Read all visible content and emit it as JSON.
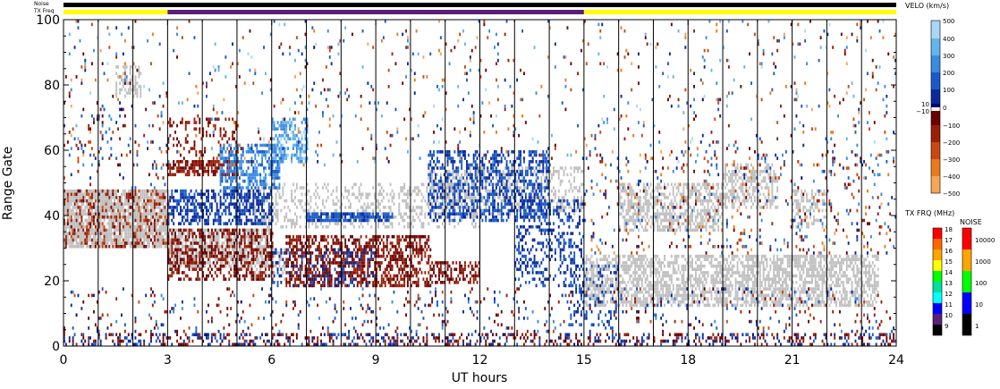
{
  "status_bars": {
    "noise_label": "Noise",
    "txfreq_label": "TX Freq",
    "colors": {
      "noise": "#000000",
      "txfreq_default": "#ffff00",
      "txfreq_mid": "#5a1e78"
    },
    "txfreq_mid_range_hours": [
      3,
      15
    ]
  },
  "chart_data": {
    "type": "heatmap",
    "title": "",
    "xlabel": "UT hours",
    "ylabel": "Range Gate",
    "xlim": [
      0,
      24
    ],
    "ylim": [
      0,
      100
    ],
    "x_ticks": [
      "0",
      "3",
      "6",
      "9",
      "12",
      "15",
      "18",
      "21",
      "24"
    ],
    "y_ticks": [
      "0",
      "20",
      "40",
      "60",
      "80",
      "100"
    ],
    "scan_boundaries_hours": [
      1,
      2,
      3,
      4,
      5,
      6,
      7,
      8,
      9,
      10,
      11,
      12,
      13,
      14,
      15,
      16,
      17,
      18,
      19,
      20,
      21,
      22,
      23
    ],
    "velocity_scale": {
      "title": "VELO (km/s)",
      "ticks": [
        "500",
        "400",
        "300",
        "200",
        "100",
        "10",
        "0",
        "−10",
        "−100",
        "−200",
        "−300",
        "−400",
        "−500"
      ],
      "colors": [
        "#e0f4ff",
        "#a8d8f8",
        "#64b4ee",
        "#3a8ae0",
        "#1a5ac8",
        "#0a2a9a",
        "#000070",
        "#ffffff",
        "#6a0000",
        "#9a1e08",
        "#c84810",
        "#ea7a1e",
        "#f6a456",
        "#fad0a4"
      ]
    },
    "txfreq_scale": {
      "title": "TX FRQ (MHz)",
      "ticks": [
        "18",
        "17",
        "16",
        "15",
        "14",
        "13",
        "12",
        "11",
        "10",
        "9"
      ],
      "colors": [
        "#ff0000",
        "#ff6600",
        "#ffa500",
        "#ffff00",
        "#00ff00",
        "#00e0a0",
        "#00ffff",
        "#0000ff",
        "#5a1e78",
        "#000000"
      ]
    },
    "noise_scale": {
      "title": "NOISE",
      "ticks": [
        "10000",
        "1000",
        "100",
        "10",
        "1"
      ],
      "colors": [
        "#ff0000",
        "#ffa500",
        "#00ff00",
        "#0000ff",
        "#000000"
      ]
    },
    "ground_scatter_color": "#c0c0c0",
    "regions": [
      {
        "kind": "ground",
        "x": [
          0,
          3
        ],
        "y": [
          30,
          48
        ],
        "density": 0.85
      },
      {
        "kind": "ground",
        "x": [
          3,
          6
        ],
        "y": [
          24,
          36
        ],
        "density": 0.7
      },
      {
        "kind": "ground",
        "x": [
          5.5,
          12
        ],
        "y": [
          36,
          50
        ],
        "density": 0.3
      },
      {
        "kind": "ground",
        "x": [
          10.5,
          15
        ],
        "y": [
          40,
          55
        ],
        "density": 0.35
      },
      {
        "kind": "ground",
        "x": [
          15,
          23.5
        ],
        "y": [
          12,
          28
        ],
        "density": 0.6
      },
      {
        "kind": "ground",
        "x": [
          16,
          19
        ],
        "y": [
          35,
          50
        ],
        "density": 0.55
      },
      {
        "kind": "ground",
        "x": [
          19,
          20.6
        ],
        "y": [
          42,
          56
        ],
        "density": 0.5
      },
      {
        "kind": "ground",
        "x": [
          21,
          22
        ],
        "y": [
          36,
          48
        ],
        "density": 0.4
      },
      {
        "kind": "ground",
        "x": [
          1.5,
          2.2
        ],
        "y": [
          76,
          86
        ],
        "density": 0.5
      },
      {
        "kind": "ground",
        "x": [
          5.5,
          6.5
        ],
        "y": [
          20,
          30
        ],
        "density": 0.3
      },
      {
        "kind": "v",
        "x": [
          0,
          3
        ],
        "y": [
          30,
          48
        ],
        "vmin": -250,
        "vmax": -80,
        "density": 0.25
      },
      {
        "kind": "v",
        "x": [
          3,
          6
        ],
        "y": [
          20,
          36
        ],
        "vmin": -150,
        "vmax": -40,
        "density": 0.45
      },
      {
        "kind": "v",
        "x": [
          3,
          5
        ],
        "y": [
          52,
          57
        ],
        "vmin": -200,
        "vmax": -60,
        "density": 0.7
      },
      {
        "kind": "v",
        "x": [
          3,
          5
        ],
        "y": [
          58,
          70
        ],
        "vmin": -200,
        "vmax": -60,
        "density": 0.2
      },
      {
        "kind": "v",
        "x": [
          3,
          6
        ],
        "y": [
          37,
          48
        ],
        "vmin": 20,
        "vmax": 140,
        "density": 0.55
      },
      {
        "kind": "v",
        "x": [
          4.5,
          6.2
        ],
        "y": [
          48,
          62
        ],
        "vmin": 150,
        "vmax": 320,
        "density": 0.55
      },
      {
        "kind": "v",
        "x": [
          6,
          7
        ],
        "y": [
          56,
          70
        ],
        "vmin": 200,
        "vmax": 420,
        "density": 0.5
      },
      {
        "kind": "v",
        "x": [
          7,
          9.5
        ],
        "y": [
          38,
          41
        ],
        "vmin": 60,
        "vmax": 200,
        "density": 0.8
      },
      {
        "kind": "v",
        "x": [
          6.4,
          10.6
        ],
        "y": [
          18,
          34
        ],
        "vmin": -160,
        "vmax": -40,
        "density": 0.55
      },
      {
        "kind": "v",
        "x": [
          10.6,
          12
        ],
        "y": [
          19,
          26
        ],
        "vmin": -150,
        "vmax": -40,
        "density": 0.5
      },
      {
        "kind": "v",
        "x": [
          6,
          9
        ],
        "y": [
          18,
          30
        ],
        "vmin": 20,
        "vmax": 150,
        "density": 0.2
      },
      {
        "kind": "v",
        "x": [
          10.5,
          14
        ],
        "y": [
          38,
          60
        ],
        "vmin": 30,
        "vmax": 200,
        "density": 0.45
      },
      {
        "kind": "v",
        "x": [
          13,
          15
        ],
        "y": [
          18,
          45
        ],
        "vmin": 30,
        "vmax": 160,
        "density": 0.3
      },
      {
        "kind": "v",
        "x": [
          14.5,
          16
        ],
        "y": [
          5,
          25
        ],
        "vmin": 30,
        "vmax": 160,
        "density": 0.2
      },
      {
        "kind": "v",
        "x": [
          0,
          24
        ],
        "y": [
          0,
          4
        ],
        "vmin": -150,
        "vmax": 150,
        "density": 0.35
      },
      {
        "kind": "v",
        "x": [
          0,
          24
        ],
        "y": [
          4,
          18
        ],
        "vmin": -250,
        "vmax": 250,
        "density": 0.07
      },
      {
        "kind": "v",
        "x": [
          0,
          24
        ],
        "y": [
          55,
          100
        ],
        "vmin": -450,
        "vmax": 450,
        "density": 0.035
      },
      {
        "kind": "v",
        "x": [
          15,
          24
        ],
        "y": [
          28,
          60
        ],
        "vmin": -450,
        "vmax": 300,
        "density": 0.08
      },
      {
        "kind": "v",
        "x": [
          0,
          3
        ],
        "y": [
          48,
          75
        ],
        "vmin": -300,
        "vmax": 300,
        "density": 0.05
      }
    ]
  }
}
